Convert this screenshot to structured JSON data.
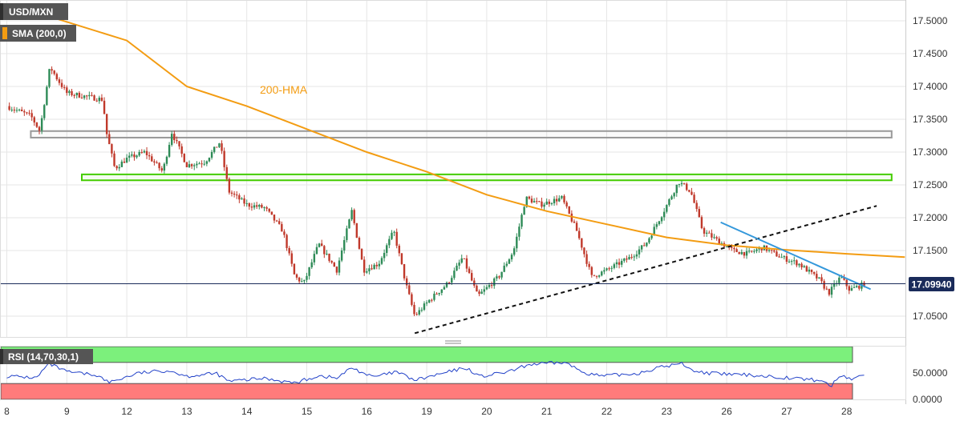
{
  "header": {
    "symbol": "USD/MXN",
    "indicator": "SMA (200,0)"
  },
  "colors": {
    "background": "#ffffff",
    "grid": "#e6e6e6",
    "up": "#2e8b57",
    "down": "#c0392b",
    "hma": "#f39c12",
    "trendline": "#111111",
    "resistance": "#3498db",
    "zone_green": "#44cc00",
    "zone_gray": "#999999",
    "rsi_line": "#2040c8",
    "rsi_overbought": "#7cf07c",
    "rsi_oversold": "#ff7b7b",
    "price_badge": "#1a2b5a"
  },
  "chart_data": [
    {
      "type": "candlestick",
      "title": "",
      "ylim": [
        17.02,
        17.525
      ],
      "x_tick_labels": [
        "8",
        "9",
        "12",
        "13",
        "14",
        "15",
        "16",
        "19",
        "20",
        "21",
        "22",
        "23",
        "26",
        "27",
        "28"
      ],
      "y_tick_labels": [
        "17.5000",
        "17.4500",
        "17.4000",
        "17.3500",
        "17.3000",
        "17.2500",
        "17.2000",
        "17.1500",
        "17.0500"
      ],
      "y_ticks": [
        17.5,
        17.45,
        17.4,
        17.35,
        17.3,
        17.25,
        17.2,
        17.15,
        17.05
      ],
      "last_price": 17.0994,
      "last_price_label": "17.09940",
      "annotation": "200-HMA",
      "hma_points": [
        [
          0.06,
          17.525
        ],
        [
          2,
          17.47
        ],
        [
          3,
          17.4
        ],
        [
          4,
          17.37
        ],
        [
          5,
          17.335
        ],
        [
          6,
          17.3
        ],
        [
          7,
          17.27
        ],
        [
          8,
          17.235
        ],
        [
          9,
          17.21
        ],
        [
          10,
          17.19
        ],
        [
          11,
          17.17
        ],
        [
          12,
          17.158
        ],
        [
          13,
          17.151
        ],
        [
          14,
          17.145
        ],
        [
          14.97,
          17.14
        ]
      ],
      "ascending_trendline": [
        [
          6.8,
          17.024
        ],
        [
          14.5,
          17.218
        ]
      ],
      "descending_resistance": [
        [
          11.9,
          17.193
        ],
        [
          14.4,
          17.091
        ]
      ],
      "zones": [
        {
          "from": 0.4,
          "to": 14.75,
          "low": 17.322,
          "high": 17.332,
          "style": "gray"
        },
        {
          "from": 1.25,
          "to": 14.75,
          "low": 17.257,
          "high": 17.266,
          "style": "green"
        }
      ],
      "anchors": [
        [
          0,
          17.37
        ],
        [
          0.4,
          17.355
        ],
        [
          0.55,
          17.332
        ],
        [
          0.72,
          17.43
        ],
        [
          0.85,
          17.41
        ],
        [
          1.0,
          17.39
        ],
        [
          1.3,
          17.385
        ],
        [
          1.6,
          17.38
        ],
        [
          1.66,
          17.33
        ],
        [
          1.8,
          17.275
        ],
        [
          2.0,
          17.29
        ],
        [
          2.3,
          17.3
        ],
        [
          2.6,
          17.27
        ],
        [
          2.75,
          17.33
        ],
        [
          3.0,
          17.28
        ],
        [
          3.3,
          17.285
        ],
        [
          3.55,
          17.315
        ],
        [
          3.7,
          17.24
        ],
        [
          4.0,
          17.22
        ],
        [
          4.3,
          17.215
        ],
        [
          4.6,
          17.18
        ],
        [
          4.8,
          17.11
        ],
        [
          4.95,
          17.1
        ],
        [
          5.2,
          17.16
        ],
        [
          5.5,
          17.12
        ],
        [
          5.75,
          17.21
        ],
        [
          5.95,
          17.12
        ],
        [
          6.2,
          17.13
        ],
        [
          6.45,
          17.18
        ],
        [
          6.65,
          17.1
        ],
        [
          6.8,
          17.05
        ],
        [
          7.05,
          17.075
        ],
        [
          7.35,
          17.1
        ],
        [
          7.6,
          17.14
        ],
        [
          7.85,
          17.08
        ],
        [
          8.2,
          17.11
        ],
        [
          8.45,
          17.15
        ],
        [
          8.65,
          17.23
        ],
        [
          8.9,
          17.22
        ],
        [
          9.25,
          17.23
        ],
        [
          9.5,
          17.18
        ],
        [
          9.75,
          17.11
        ],
        [
          10.0,
          17.12
        ],
        [
          10.4,
          17.14
        ],
        [
          10.65,
          17.16
        ],
        [
          10.95,
          17.21
        ],
        [
          11.2,
          17.255
        ],
        [
          11.4,
          17.24
        ],
        [
          11.6,
          17.18
        ],
        [
          11.85,
          17.165
        ],
        [
          12.1,
          17.15
        ],
        [
          12.35,
          17.145
        ],
        [
          12.6,
          17.155
        ],
        [
          12.9,
          17.14
        ],
        [
          13.2,
          17.13
        ],
        [
          13.55,
          17.105
        ],
        [
          13.7,
          17.085
        ],
        [
          13.9,
          17.11
        ],
        [
          14.05,
          17.09
        ],
        [
          14.3,
          17.099
        ]
      ]
    },
    {
      "type": "line",
      "title": "",
      "indicator": "RSI (14,70,30,1)",
      "ylim": [
        0,
        100
      ],
      "y_tick_labels": [
        "50.0000",
        "0.0000"
      ],
      "y_ticks": [
        50,
        0
      ],
      "overbought": 70,
      "oversold": 30,
      "anchors": [
        [
          0,
          44
        ],
        [
          0.5,
          41
        ],
        [
          0.7,
          68
        ],
        [
          1.0,
          52
        ],
        [
          1.5,
          46
        ],
        [
          1.7,
          32
        ],
        [
          2.2,
          50
        ],
        [
          2.7,
          55
        ],
        [
          3.0,
          44
        ],
        [
          3.5,
          49
        ],
        [
          3.7,
          34
        ],
        [
          4.3,
          40
        ],
        [
          4.8,
          31
        ],
        [
          5.2,
          45
        ],
        [
          5.5,
          40
        ],
        [
          5.75,
          60
        ],
        [
          6.1,
          42
        ],
        [
          6.5,
          52
        ],
        [
          6.8,
          36
        ],
        [
          7.3,
          50
        ],
        [
          7.65,
          60
        ],
        [
          7.9,
          43
        ],
        [
          8.4,
          53
        ],
        [
          8.7,
          66
        ],
        [
          9.3,
          70
        ],
        [
          9.6,
          52
        ],
        [
          9.9,
          44
        ],
        [
          10.5,
          49
        ],
        [
          10.9,
          61
        ],
        [
          11.25,
          68
        ],
        [
          11.5,
          52
        ],
        [
          11.9,
          48
        ],
        [
          12.4,
          46
        ],
        [
          12.9,
          42
        ],
        [
          13.55,
          36
        ],
        [
          13.75,
          26
        ],
        [
          13.9,
          46
        ],
        [
          14.1,
          38
        ],
        [
          14.3,
          48
        ]
      ]
    }
  ]
}
